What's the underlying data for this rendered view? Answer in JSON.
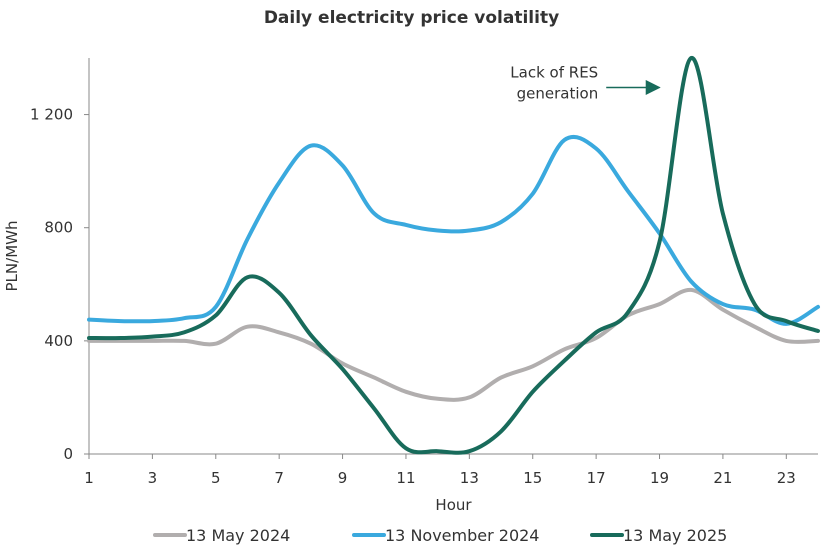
{
  "chart_data": {
    "type": "line",
    "title": "Daily electricity price volatility",
    "xlabel": "Hour",
    "ylabel": "PLN/MWh",
    "xlim": [
      1,
      24
    ],
    "ylim": [
      0,
      1400
    ],
    "x_ticks": [
      1,
      3,
      5,
      7,
      9,
      11,
      13,
      15,
      17,
      19,
      21,
      23
    ],
    "y_ticks": [
      {
        "value": 0,
        "label": "0"
      },
      {
        "value": 400,
        "label": "400"
      },
      {
        "value": 800,
        "label": "800"
      },
      {
        "value": 1200,
        "label": "1 200"
      }
    ],
    "grid": false,
    "legend_position": "bottom",
    "x": [
      1,
      2,
      3,
      4,
      5,
      6,
      7,
      8,
      9,
      10,
      11,
      12,
      13,
      14,
      15,
      16,
      17,
      18,
      19,
      20,
      21,
      22,
      23,
      24
    ],
    "series": [
      {
        "name": "13 May 2024",
        "color": "#b1aeae",
        "values": [
          400,
          400,
          400,
          400,
          390,
          450,
          430,
          390,
          320,
          270,
          220,
          195,
          200,
          270,
          310,
          370,
          410,
          490,
          530,
          580,
          510,
          450,
          400,
          400
        ]
      },
      {
        "name": "13 November 2024",
        "color": "#3aa9de",
        "values": [
          475,
          470,
          470,
          480,
          520,
          760,
          960,
          1090,
          1020,
          850,
          810,
          790,
          790,
          820,
          920,
          1110,
          1080,
          930,
          780,
          610,
          530,
          510,
          460,
          520
        ]
      },
      {
        "name": "13 May 2025",
        "color": "#186b5b",
        "values": [
          410,
          410,
          415,
          430,
          490,
          625,
          570,
          420,
          300,
          160,
          20,
          10,
          10,
          80,
          220,
          330,
          430,
          500,
          750,
          1400,
          850,
          530,
          470,
          435
        ]
      }
    ],
    "annotation": {
      "text_lines": [
        "Lack of RES",
        "generation"
      ],
      "x": 20,
      "y": 1310
    }
  }
}
